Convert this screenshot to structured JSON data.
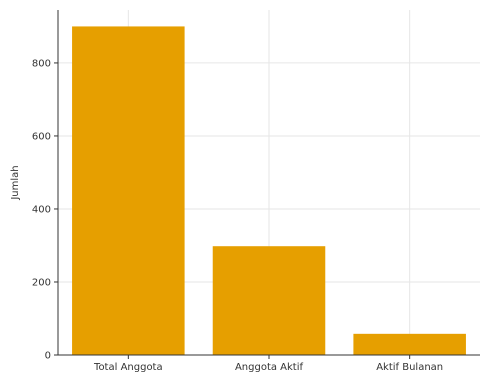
{
  "chart_data": {
    "type": "bar",
    "categories": [
      "Total Anggota",
      "Anggota Aktif",
      "Aktif Bulanan"
    ],
    "values": [
      900,
      298,
      58
    ],
    "title": "",
    "xlabel": "",
    "ylabel": "Jumlah",
    "ylim": [
      0,
      945
    ],
    "yticks": [
      0,
      200,
      400,
      600,
      800
    ],
    "grid": true,
    "bar_color": "#E69F00"
  }
}
